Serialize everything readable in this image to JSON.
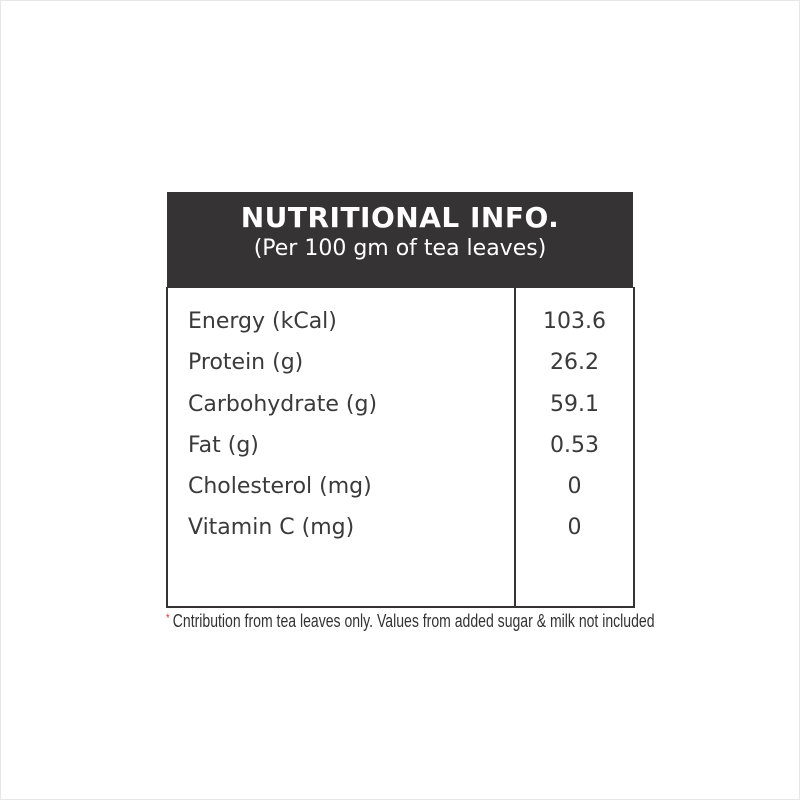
{
  "header": {
    "title": "NUTRITIONAL INFO.",
    "subtitle": "(Per 100 gm of tea leaves)"
  },
  "rows": [
    {
      "label": "Energy (kCal)",
      "value": "103.6"
    },
    {
      "label": "Protein (g)",
      "value": "26.2"
    },
    {
      "label": "Carbohydrate (g)",
      "value": "59.1"
    },
    {
      "label": "Fat (g)",
      "value": "0.53"
    },
    {
      "label": "Cholesterol (mg)",
      "value": "0"
    },
    {
      "label": "Vitamin C (mg)",
      "value": "0"
    }
  ],
  "footnote": {
    "marker": "*",
    "text": "Cntribution from tea leaves only. Values from added sugar & milk not included"
  },
  "colors": {
    "header_bg": "#353334",
    "marker": "#d9363e"
  }
}
